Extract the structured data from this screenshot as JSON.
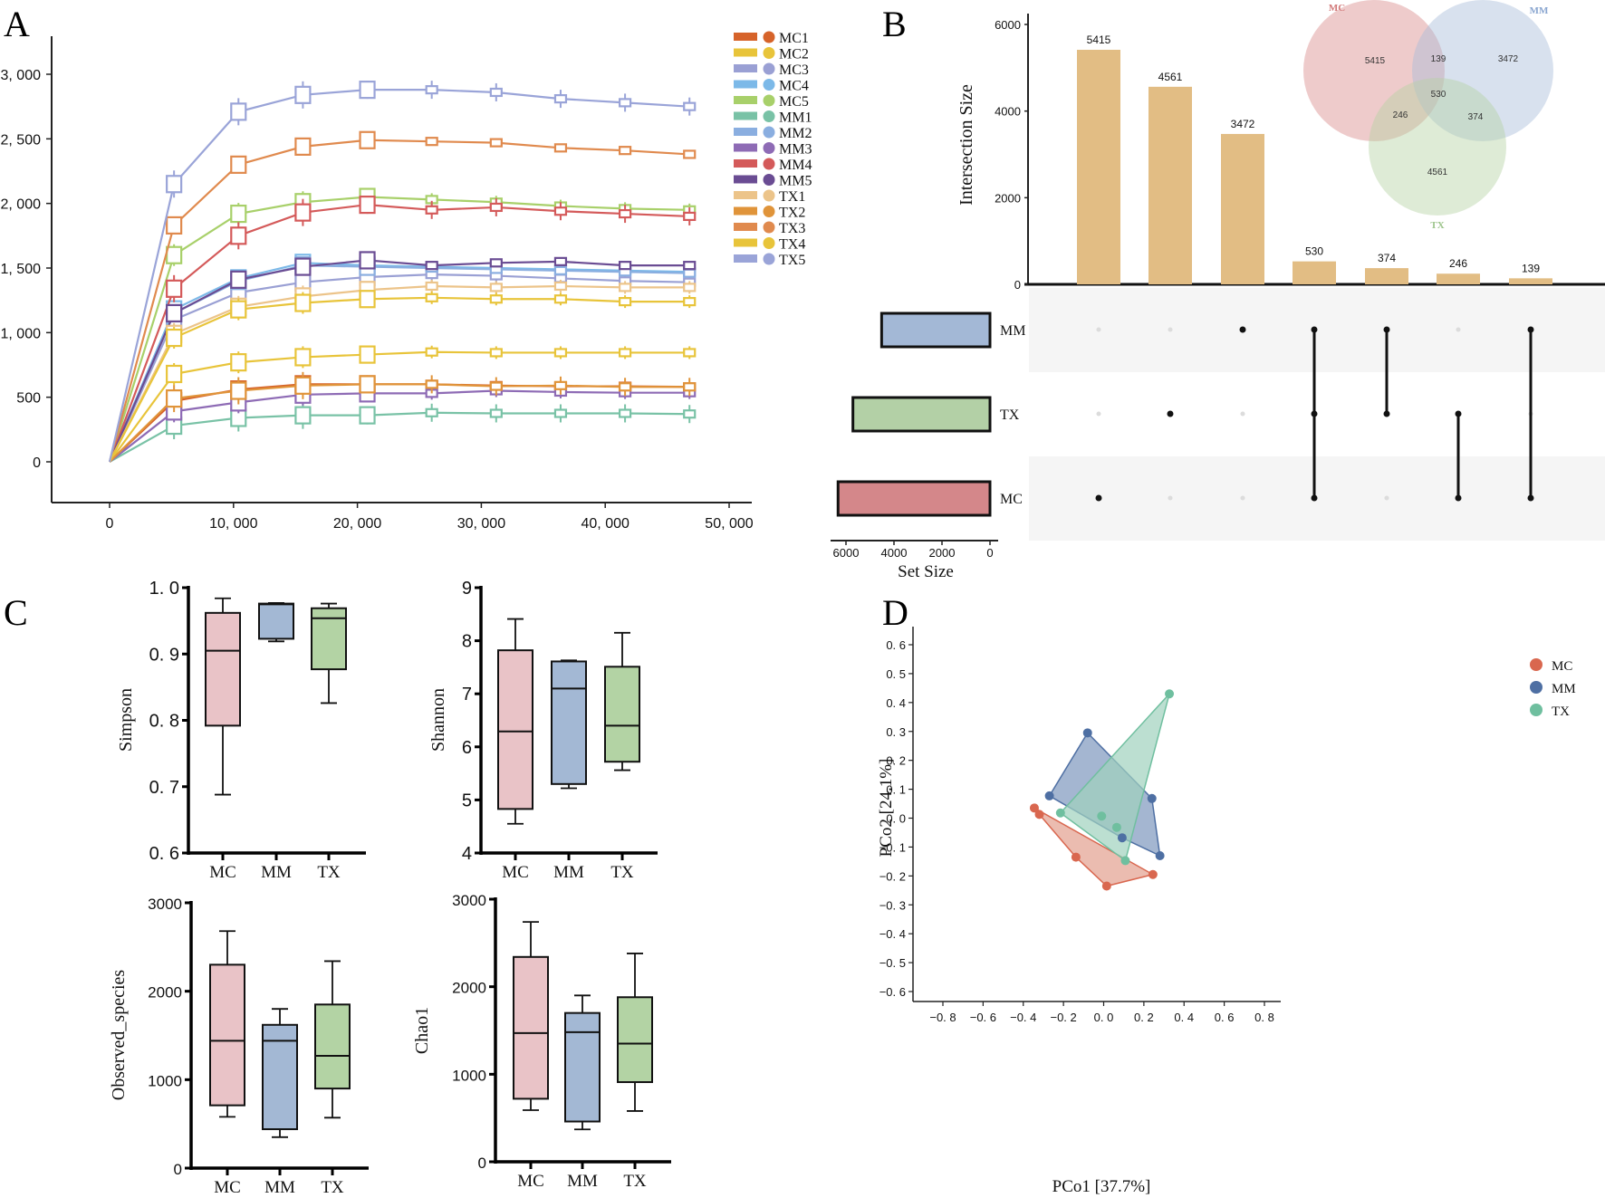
{
  "figure": {
    "panel_labels": [
      "A",
      "B",
      "C",
      "D"
    ]
  },
  "chart_data": [
    {
      "id": "A",
      "type": "line",
      "title": "",
      "xlabel": "",
      "ylabel": "",
      "xlim": [
        -4000,
        51000
      ],
      "ylim": [
        -300,
        3300
      ],
      "xticks": [
        0,
        10000,
        20000,
        30000,
        40000,
        50000
      ],
      "xtick_labels": [
        "0",
        "10, 000",
        "20, 000",
        "30, 000",
        "40, 000",
        "50, 000"
      ],
      "yticks": [
        0,
        500,
        1000,
        1500,
        2000,
        2500,
        3000
      ],
      "ytick_labels": [
        "0",
        "500",
        "1, 000",
        "1, 500",
        "2, 000",
        "2, 500",
        "3, 000"
      ],
      "legend_position": "right",
      "x": [
        0,
        5200,
        10400,
        15600,
        20800,
        26000,
        31200,
        36400,
        41600,
        46800
      ],
      "series": [
        {
          "name": "MC1",
          "color": "#d6632a",
          "values": [
            0,
            470,
            560,
            600,
            600,
            600,
            590,
            585,
            585,
            580
          ]
        },
        {
          "name": "MC2",
          "color": "#e8c43a",
          "values": [
            0,
            680,
            770,
            810,
            830,
            850,
            845,
            845,
            845,
            845
          ]
        },
        {
          "name": "MC3",
          "color": "#9aa0d4",
          "values": [
            0,
            1100,
            1310,
            1390,
            1430,
            1450,
            1440,
            1420,
            1400,
            1390
          ]
        },
        {
          "name": "MC4",
          "color": "#7cb9e8",
          "values": [
            0,
            1180,
            1420,
            1540,
            1520,
            1510,
            1500,
            1490,
            1480,
            1470
          ]
        },
        {
          "name": "MC5",
          "color": "#a8d06a",
          "values": [
            0,
            1600,
            1920,
            2010,
            2050,
            2030,
            2010,
            1980,
            1960,
            1950
          ]
        },
        {
          "name": "MM1",
          "color": "#79c2a6",
          "values": [
            0,
            280,
            340,
            360,
            360,
            380,
            375,
            375,
            375,
            370
          ]
        },
        {
          "name": "MM2",
          "color": "#8aaee0",
          "values": [
            0,
            1150,
            1400,
            1520,
            1510,
            1500,
            1490,
            1480,
            1470,
            1460
          ]
        },
        {
          "name": "MM3",
          "color": "#8e6bb5",
          "values": [
            0,
            390,
            460,
            520,
            530,
            530,
            550,
            540,
            535,
            535
          ]
        },
        {
          "name": "MM4",
          "color": "#d45a5a",
          "values": [
            0,
            1340,
            1750,
            1930,
            1990,
            1950,
            1970,
            1940,
            1920,
            1900
          ]
        },
        {
          "name": "MM5",
          "color": "#6a4c93",
          "values": [
            0,
            1150,
            1410,
            1510,
            1560,
            1520,
            1540,
            1550,
            1520,
            1520
          ]
        },
        {
          "name": "TX1",
          "color": "#ecc48a",
          "values": [
            0,
            990,
            1200,
            1280,
            1330,
            1360,
            1350,
            1360,
            1350,
            1350
          ]
        },
        {
          "name": "TX2",
          "color": "#e0943a",
          "values": [
            0,
            490,
            550,
            590,
            600,
            600,
            585,
            590,
            580,
            580
          ]
        },
        {
          "name": "TX3",
          "color": "#e08a4e",
          "values": [
            0,
            1830,
            2300,
            2440,
            2490,
            2480,
            2470,
            2430,
            2410,
            2380
          ]
        },
        {
          "name": "TX4",
          "color": "#e8c43a",
          "values": [
            0,
            960,
            1180,
            1230,
            1260,
            1270,
            1260,
            1260,
            1240,
            1240
          ]
        },
        {
          "name": "TX5",
          "color": "#9aa4d8",
          "values": [
            0,
            2150,
            2710,
            2840,
            2880,
            2880,
            2860,
            2810,
            2780,
            2750
          ]
        }
      ]
    },
    {
      "id": "B",
      "type": "bar",
      "subtype": "upset",
      "ylabel": "Intersection Size",
      "ylim": [
        0,
        6300
      ],
      "yticks": [
        0,
        2000,
        4000,
        6000
      ],
      "bar_color": "#e2bd84",
      "intersections": [
        {
          "value": 5415,
          "sets": [
            "MC"
          ]
        },
        {
          "value": 4561,
          "sets": [
            "TX"
          ]
        },
        {
          "value": 3472,
          "sets": [
            "MM"
          ]
        },
        {
          "value": 530,
          "sets": [
            "MM",
            "TX",
            "MC"
          ]
        },
        {
          "value": 374,
          "sets": [
            "MM",
            "TX"
          ]
        },
        {
          "value": 246,
          "sets": [
            "TX",
            "MC"
          ]
        },
        {
          "value": 139,
          "sets": [
            "MM",
            "MC"
          ]
        }
      ],
      "set_rows": [
        {
          "name": "MM",
          "size": 4515,
          "color": "#a3b8d6"
        },
        {
          "name": "TX",
          "size": 5711,
          "color": "#b3d0a6"
        },
        {
          "name": "MC",
          "size": 6330,
          "color": "#d4878a"
        }
      ],
      "set_size_label": "Set Size",
      "set_size_ticks": [
        6000,
        4000,
        2000,
        0
      ],
      "venn": {
        "sets": [
          {
            "name": "MC",
            "color": "#d98c8c",
            "label_color": "#d27a7a"
          },
          {
            "name": "MM",
            "color": "#a9bcd9",
            "label_color": "#8aa6d0"
          },
          {
            "name": "TX",
            "color": "#b5d3a5",
            "label_color": "#9cc48a"
          }
        ],
        "regions": {
          "MC_only": 5415,
          "MM_only": 3472,
          "TX_only": 4561,
          "MC_MM": 139,
          "MC_TX": 246,
          "MM_TX": 374,
          "all": 530
        }
      }
    },
    {
      "id": "C1",
      "type": "box",
      "ylabel": "Simpson",
      "ylim": [
        0.6,
        1.0
      ],
      "yticks": [
        0.6,
        0.7,
        0.8,
        0.9,
        1.0
      ],
      "ytick_labels": [
        "0. 6",
        "0. 7",
        "0. 8",
        "0. 9",
        "1. 0"
      ],
      "categories": [
        "MC",
        "MM",
        "TX"
      ],
      "boxes": [
        {
          "min": 0.688,
          "q1": 0.792,
          "median": 0.905,
          "q3": 0.962,
          "max": 0.984
        },
        {
          "min": 0.919,
          "q1": 0.923,
          "median": 0.975,
          "q3": 0.976,
          "max": 0.977
        },
        {
          "min": 0.826,
          "q1": 0.877,
          "median": 0.954,
          "q3": 0.969,
          "max": 0.976
        }
      ]
    },
    {
      "id": "C2",
      "type": "box",
      "ylabel": "Shannon",
      "ylim": [
        4,
        9
      ],
      "yticks": [
        4,
        5,
        6,
        7,
        8,
        9
      ],
      "ytick_labels": [
        "4",
        "5",
        "6",
        "7",
        "8",
        "9"
      ],
      "categories": [
        "MC",
        "MM",
        "TX"
      ],
      "boxes": [
        {
          "min": 4.55,
          "q1": 4.83,
          "median": 6.29,
          "q3": 7.82,
          "max": 8.41
        },
        {
          "min": 5.22,
          "q1": 5.3,
          "median": 7.1,
          "q3": 7.61,
          "max": 7.63
        },
        {
          "min": 5.56,
          "q1": 5.72,
          "median": 6.4,
          "q3": 7.51,
          "max": 8.15
        }
      ]
    },
    {
      "id": "C3",
      "type": "box",
      "ylabel": "Observed_species",
      "ylim": [
        0,
        3000
      ],
      "yticks": [
        0,
        1000,
        2000,
        3000
      ],
      "ytick_labels": [
        "0",
        "1000",
        "2000",
        "3000"
      ],
      "categories": [
        "MC",
        "MM",
        "TX"
      ],
      "boxes": [
        {
          "min": 580,
          "q1": 710,
          "median": 1440,
          "q3": 2300,
          "max": 2680
        },
        {
          "min": 350,
          "q1": 440,
          "median": 1440,
          "q3": 1620,
          "max": 1800
        },
        {
          "min": 570,
          "q1": 900,
          "median": 1270,
          "q3": 1850,
          "max": 2340
        }
      ]
    },
    {
      "id": "C4",
      "type": "box",
      "ylabel": "Chao1",
      "ylim": [
        0,
        3000
      ],
      "yticks": [
        0,
        1000,
        2000,
        3000
      ],
      "ytick_labels": [
        "0",
        "1000",
        "2000",
        "3000"
      ],
      "categories": [
        "MC",
        "MM",
        "TX"
      ],
      "boxes": [
        {
          "min": 590,
          "q1": 720,
          "median": 1470,
          "q3": 2340,
          "max": 2740
        },
        {
          "min": 370,
          "q1": 460,
          "median": 1480,
          "q3": 1700,
          "max": 1900
        },
        {
          "min": 580,
          "q1": 910,
          "median": 1350,
          "q3": 1880,
          "max": 2380
        }
      ],
      "box_colors": [
        "#e9c3c7",
        "#a3b8d4",
        "#b3d3a4"
      ]
    },
    {
      "id": "D",
      "type": "scatter",
      "subtype": "pcoa",
      "xlabel": "PCo1 [37.7%]",
      "ylabel": "PCo2 [24.1%]",
      "xlim": [
        -0.95,
        0.88
      ],
      "ylim": [
        -0.63,
        0.66
      ],
      "xticks": [
        -0.8,
        -0.6,
        -0.4,
        -0.2,
        0.0,
        0.2,
        0.4,
        0.6,
        0.8
      ],
      "xtick_labels": [
        "−0. 8",
        "−0. 6",
        "−0. 4",
        "−0. 2",
        "0. 0",
        "0. 2",
        "0. 4",
        "0. 6",
        "0. 8"
      ],
      "yticks": [
        0.6,
        0.5,
        0.4,
        0.3,
        0.2,
        0.1,
        0.0,
        -0.1,
        -0.2,
        -0.3,
        -0.4,
        -0.5,
        -0.6
      ],
      "ytick_labels": [
        "0. 6",
        "0. 5",
        "0. 4",
        "0. 3",
        "0. 2",
        "0. 1",
        "0. 0",
        "−0. 1",
        "−0. 2",
        "−0. 3",
        "−0. 4",
        "−0. 5",
        "−0. 6"
      ],
      "legend_position": "top-right",
      "groups": [
        {
          "name": "MC",
          "color": "#d9674f",
          "fill": "#e3a08f",
          "points": [
            [
              -0.345,
              0.035
            ],
            [
              -0.32,
              0.013
            ],
            [
              -0.138,
              -0.135
            ],
            [
              0.015,
              -0.235
            ],
            [
              0.245,
              -0.195
            ]
          ],
          "hull": [
            [
              -0.345,
              0.035
            ],
            [
              0.245,
              -0.195
            ],
            [
              0.015,
              -0.235
            ],
            [
              -0.138,
              -0.135
            ],
            [
              -0.32,
              0.013
            ]
          ]
        },
        {
          "name": "MM",
          "color": "#4e6fa3",
          "fill": "#7e97bd",
          "points": [
            [
              -0.08,
              0.295
            ],
            [
              -0.27,
              0.077
            ],
            [
              0.24,
              0.068
            ],
            [
              0.28,
              -0.13
            ],
            [
              0.092,
              -0.068
            ]
          ],
          "hull": [
            [
              -0.08,
              0.295
            ],
            [
              0.24,
              0.068
            ],
            [
              0.28,
              -0.13
            ],
            [
              0.092,
              -0.068
            ],
            [
              -0.27,
              0.077
            ]
          ]
        },
        {
          "name": "TX",
          "color": "#6fbf9f",
          "fill": "#9fd1bd",
          "points": [
            [
              0.327,
              0.43
            ],
            [
              -0.215,
              0.018
            ],
            [
              -0.01,
              0.007
            ],
            [
              0.065,
              -0.032
            ],
            [
              0.108,
              -0.147
            ]
          ],
          "hull": [
            [
              0.327,
              0.43
            ],
            [
              0.108,
              -0.147
            ],
            [
              -0.215,
              0.018
            ]
          ]
        }
      ]
    }
  ]
}
